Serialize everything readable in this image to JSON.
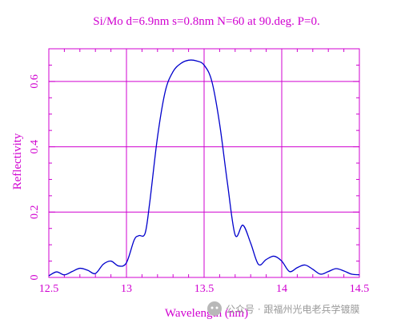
{
  "chart_data": {
    "type": "line",
    "title": "Si/Mo d=6.9nm s=0.8nm N=60 at 90.deg. P=0.",
    "xlabel": "Wavelength (nm)",
    "ylabel": "Reflectivity",
    "xlim": [
      12.5,
      14.5
    ],
    "ylim": [
      0,
      0.7
    ],
    "xticks": [
      12.5,
      13,
      13.5,
      14,
      14.5
    ],
    "xtick_labels": [
      "12.5",
      "13",
      "13.5",
      "14",
      "14.5"
    ],
    "yticks": [
      0,
      0.2,
      0.4,
      0.6
    ],
    "ytick_labels": [
      "0",
      "0.2",
      "0.4",
      "0.6"
    ],
    "grid": true,
    "axis_color": "#d000d0",
    "series": [
      {
        "color": "#0000cc",
        "x": [
          12.5,
          12.55,
          12.6,
          12.65,
          12.7,
          12.75,
          12.8,
          12.85,
          12.9,
          12.95,
          13.0,
          13.05,
          13.08,
          13.12,
          13.15,
          13.2,
          13.25,
          13.3,
          13.35,
          13.4,
          13.45,
          13.5,
          13.55,
          13.6,
          13.65,
          13.7,
          13.75,
          13.8,
          13.85,
          13.9,
          13.95,
          14.0,
          14.05,
          14.1,
          14.15,
          14.2,
          14.25,
          14.3,
          14.35,
          14.4,
          14.45,
          14.5
        ],
        "y": [
          0.005,
          0.017,
          0.008,
          0.018,
          0.028,
          0.022,
          0.012,
          0.04,
          0.05,
          0.035,
          0.045,
          0.115,
          0.128,
          0.135,
          0.23,
          0.43,
          0.57,
          0.63,
          0.655,
          0.665,
          0.663,
          0.65,
          0.6,
          0.47,
          0.29,
          0.13,
          0.16,
          0.105,
          0.04,
          0.055,
          0.065,
          0.05,
          0.018,
          0.03,
          0.038,
          0.025,
          0.01,
          0.018,
          0.027,
          0.02,
          0.01,
          0.008
        ]
      }
    ]
  },
  "watermark": {
    "text": "公众号 · 跟福州光电老兵学镀膜"
  }
}
